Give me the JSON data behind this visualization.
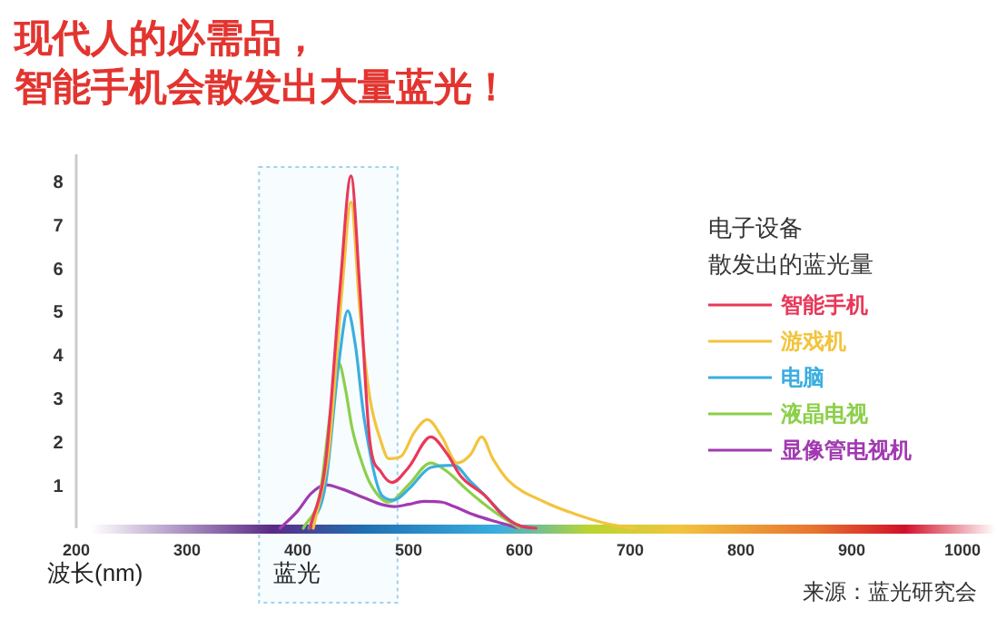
{
  "chart_data": {
    "type": "line",
    "title": "现代人的必需品，",
    "subtitle": "智能手机会散发出大量蓝光！",
    "xlabel": "波长(nm)",
    "legend_title": "电子设备",
    "legend": "right",
    "xlim": [
      200,
      1000
    ],
    "ylim": [
      0,
      8.6
    ],
    "xticks": [
      200,
      300,
      400,
      500,
      600,
      700,
      800,
      900,
      1000
    ],
    "yticks": [
      1,
      2,
      3,
      4,
      5,
      6,
      7,
      8
    ],
    "bands": [
      {
        "axis": "x",
        "from": 365,
        "to": 490,
        "label": "蓝光",
        "color": "#9fd3ee"
      }
    ],
    "annotations": [
      "散发出的蓝光量",
      "来源：蓝光研究会"
    ],
    "series": [
      {
        "name": "智能手机",
        "color": "#e8385a",
        "x": [
          411,
          425,
          438,
          448,
          456,
          465,
          475,
          485,
          500,
          520,
          535,
          547,
          569,
          585,
          601,
          615
        ],
        "values": [
          0,
          1.5,
          5.5,
          8.1,
          5.5,
          2.0,
          1.3,
          1.05,
          1.4,
          2.1,
          1.7,
          1.2,
          0.75,
          0.3,
          0.05,
          0
        ]
      },
      {
        "name": "游戏机",
        "color": "#f2c43d",
        "x": [
          414,
          428,
          440,
          448,
          456,
          465,
          475,
          482,
          493,
          505,
          517,
          530,
          544,
          556,
          566,
          576,
          590,
          623,
          650,
          680,
          705
        ],
        "values": [
          0,
          1.8,
          5.5,
          7.5,
          5.0,
          3.0,
          2.0,
          1.6,
          1.65,
          2.2,
          2.5,
          2.1,
          1.5,
          1.7,
          2.1,
          1.6,
          1.1,
          0.6,
          0.33,
          0.1,
          0
        ]
      },
      {
        "name": "电脑",
        "color": "#3aaee0",
        "x": [
          410,
          425,
          437,
          445,
          452,
          460,
          476,
          487,
          500,
          520,
          541,
          555,
          569,
          582,
          596,
          610
        ],
        "values": [
          0,
          1.0,
          3.8,
          5.0,
          4.2,
          2.5,
          0.75,
          0.65,
          0.9,
          1.4,
          1.45,
          1.1,
          0.75,
          0.4,
          0.1,
          0
        ]
      },
      {
        "name": "液晶电视",
        "color": "#8ccf4a",
        "x": [
          405,
          420,
          430,
          437,
          443,
          449,
          458,
          466,
          482,
          500,
          520,
          535,
          552,
          566,
          579,
          600
        ],
        "values": [
          0,
          0.8,
          2.8,
          3.8,
          3.2,
          2.3,
          1.5,
          1.0,
          0.6,
          1.0,
          1.5,
          1.3,
          0.9,
          0.6,
          0.35,
          0
        ]
      },
      {
        "name": "显像管电视机",
        "color": "#a13ab0",
        "x": [
          384,
          400,
          412,
          425,
          440,
          460,
          475,
          487,
          500,
          514,
          530,
          541,
          560,
          579,
          600
        ],
        "values": [
          0,
          0.4,
          0.8,
          1.0,
          0.9,
          0.7,
          0.55,
          0.5,
          0.55,
          0.62,
          0.6,
          0.5,
          0.3,
          0.15,
          0
        ]
      }
    ]
  }
}
